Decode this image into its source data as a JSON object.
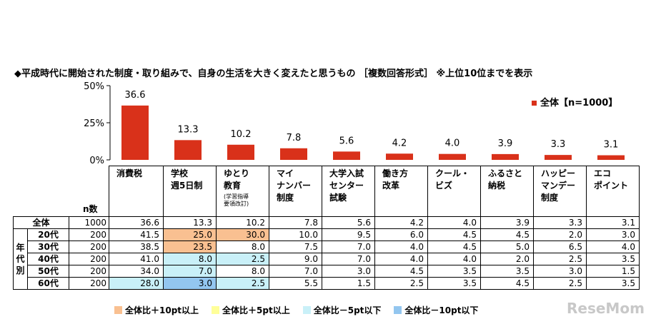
{
  "title": "◆平成時代に開始された制度・取り組みで、自身の生活を大きく変えたと思うもの ［複数回答形式］ ※上位10位までを表示",
  "legend": "全体【n=1000】",
  "colors": {
    "bar": "#d9311a",
    "plus10": "#f9c091",
    "plus5": "#ffff99",
    "minus5": "#c9f0f8",
    "minus10": "#93c6ef"
  },
  "chart_data": {
    "type": "bar",
    "categories": [
      "消費税",
      "学校週5日制",
      "ゆとり教育",
      "マイナンバー制度",
      "大学入試センター試験",
      "働き方改革",
      "クール・ビズ",
      "ふるさと納税",
      "ハッピーマンデー制度",
      "エコポイント"
    ],
    "series": [
      {
        "name": "全体【n=1000】",
        "values": [
          36.6,
          13.3,
          10.2,
          7.8,
          5.6,
          4.2,
          4.0,
          3.9,
          3.3,
          3.1
        ]
      }
    ],
    "value_labels": [
      "36.6",
      "13.3",
      "10.2",
      "7.8",
      "5.6",
      "4.2",
      "4.0",
      "3.9",
      "3.3",
      "3.1"
    ],
    "y_ticks": [
      "0%",
      "25%",
      "50%"
    ],
    "ylim": [
      0,
      50
    ],
    "grid": false,
    "legend_position": "top-right"
  },
  "table": {
    "n_label": "n数",
    "side_label": "年\n代\n別",
    "headers": [
      {
        "text": "消費税",
        "note": ""
      },
      {
        "text": "学校\n週5日制",
        "note": ""
      },
      {
        "text": "ゆとり\n教育",
        "note": "(学習指導\n要領改訂)"
      },
      {
        "text": "マイ\nナンバー\n制度",
        "note": ""
      },
      {
        "text": "大学入試\nセンター\n試験",
        "note": ""
      },
      {
        "text": "働き方\n改革",
        "note": ""
      },
      {
        "text": "クール・\nビズ",
        "note": ""
      },
      {
        "text": "ふるさと\n納税",
        "note": ""
      },
      {
        "text": "ハッピー\nマンデー\n制度",
        "note": ""
      },
      {
        "text": "エコ\nポイント",
        "note": ""
      }
    ],
    "rows": [
      {
        "label": "全体",
        "n": "1000",
        "values": [
          "36.6",
          "13.3",
          "10.2",
          "7.8",
          "5.6",
          "4.2",
          "4.0",
          "3.9",
          "3.3",
          "3.1"
        ],
        "marks": [
          "",
          "",
          "",
          "",
          "",
          "",
          "",
          "",
          "",
          ""
        ]
      },
      {
        "label": "20代",
        "n": "200",
        "values": [
          "41.5",
          "25.0",
          "30.0",
          "10.0",
          "9.5",
          "6.0",
          "4.5",
          "4.5",
          "2.0",
          "3.0"
        ],
        "marks": [
          "",
          "plus10",
          "plus10",
          "",
          "",
          "",
          "",
          "",
          "",
          ""
        ]
      },
      {
        "label": "30代",
        "n": "200",
        "values": [
          "38.5",
          "23.5",
          "8.0",
          "7.5",
          "7.0",
          "4.0",
          "4.5",
          "5.0",
          "6.5",
          "4.0"
        ],
        "marks": [
          "",
          "plus10",
          "",
          "",
          "",
          "",
          "",
          "",
          "",
          ""
        ]
      },
      {
        "label": "40代",
        "n": "200",
        "values": [
          "41.0",
          "8.0",
          "2.5",
          "9.0",
          "7.0",
          "4.0",
          "4.0",
          "2.0",
          "2.5",
          "3.5"
        ],
        "marks": [
          "",
          "minus5",
          "minus5",
          "",
          "",
          "",
          "",
          "",
          "",
          ""
        ]
      },
      {
        "label": "50代",
        "n": "200",
        "values": [
          "34.0",
          "7.0",
          "8.0",
          "7.0",
          "3.0",
          "4.5",
          "3.5",
          "3.5",
          "3.0",
          "1.5"
        ],
        "marks": [
          "",
          "minus5",
          "",
          "",
          "",
          "",
          "",
          "",
          "",
          ""
        ]
      },
      {
        "label": "60代",
        "n": "200",
        "values": [
          "28.0",
          "3.0",
          "2.5",
          "5.5",
          "1.5",
          "2.5",
          "3.5",
          "4.5",
          "2.5",
          "3.5"
        ],
        "marks": [
          "minus5",
          "minus10",
          "minus5",
          "",
          "",
          "",
          "",
          "",
          "",
          ""
        ]
      }
    ]
  },
  "key": [
    {
      "label": "全体比＋10pt以上",
      "mark": "plus10"
    },
    {
      "label": "全体比＋5pt以上",
      "mark": "plus5"
    },
    {
      "label": "全体比－5pt以下",
      "mark": "minus5"
    },
    {
      "label": "全体比－10pt以下",
      "mark": "minus10"
    }
  ],
  "watermark": "ReseMom"
}
